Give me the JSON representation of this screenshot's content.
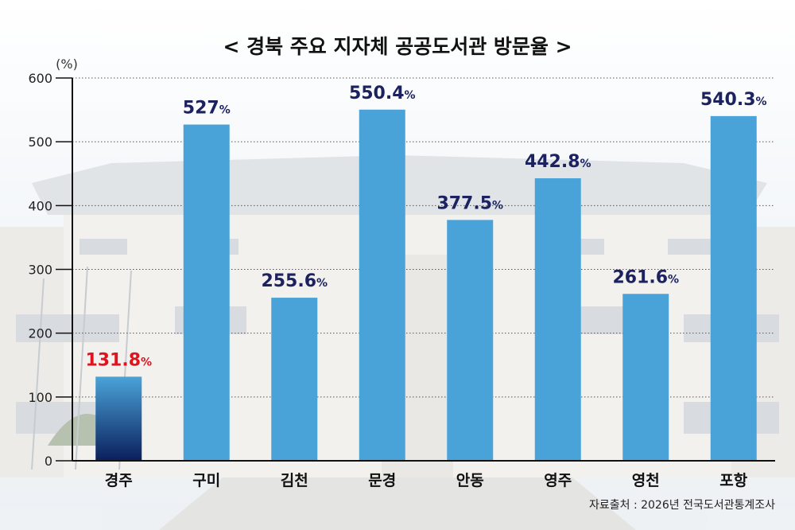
{
  "chart_data": {
    "type": "bar",
    "title": "< 경북 주요 지자체 공공도서관 방문율 >",
    "y_unit": "(%)",
    "ylim": [
      0,
      600
    ],
    "y_ticks": [
      "0",
      "100",
      "200",
      "300",
      "400",
      "500",
      "600"
    ],
    "grid": true,
    "categories": [
      "경주",
      "구미",
      "김천",
      "문경",
      "안동",
      "영주",
      "영천",
      "포항"
    ],
    "values": [
      131.8,
      527,
      255.6,
      550.4,
      377.5,
      442.8,
      261.6,
      540.3
    ],
    "value_labels": [
      "131.8",
      "527",
      "255.6",
      "550.4",
      "377.5",
      "442.8",
      "261.6",
      "540.3"
    ],
    "percent_sign": "%",
    "highlight_index": 0,
    "source": "자료출처 : 2026년 전국도서관통계조사"
  },
  "colors": {
    "bar": "#4aa3d8",
    "highlight_top": "#4aa3d8",
    "highlight_bottom": "#0b1f5c",
    "label": "#1c2260",
    "highlight_label": "#e0141e",
    "text": "#111111"
  }
}
